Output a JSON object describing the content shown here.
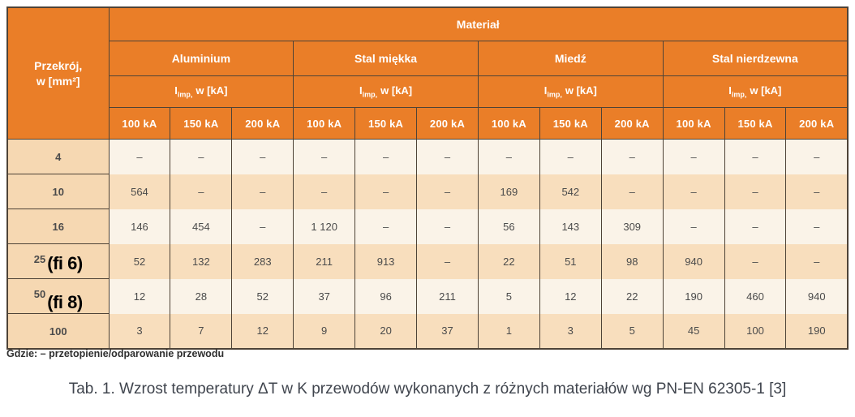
{
  "colors": {
    "header_orange": "#EA7E28",
    "row_cream": "#FAF3E8",
    "row_peach": "#F8DEBD",
    "section_peach": "#F6D8B2",
    "border_dark": "#4E4337",
    "header_text": "#FFFFFF",
    "cell_text": "#4B4B4B",
    "annotation_black": "#000000",
    "caption_gray": "#3F444D"
  },
  "table": {
    "corner": {
      "line1": "Przekrój,",
      "line2": "w [mm²]"
    },
    "material_header": "Materiał",
    "groups": [
      "Aluminium",
      "Stal miękka",
      "Miedź",
      "Stal nierdzewna"
    ],
    "imp": {
      "symbol": "I",
      "subscript": "imp,",
      "rest": "w [kA]"
    },
    "ka_columns": [
      "100 kA",
      "150 kA",
      "200 kA"
    ],
    "rows": [
      {
        "section": "4",
        "values": [
          "–",
          "–",
          "–",
          "–",
          "–",
          "–",
          "–",
          "–",
          "–",
          "–",
          "–",
          "–"
        ]
      },
      {
        "section": "10",
        "values": [
          "564",
          "–",
          "–",
          "–",
          "–",
          "–",
          "169",
          "542",
          "–",
          "–",
          "–",
          "–"
        ]
      },
      {
        "section": "16",
        "values": [
          "146",
          "454",
          "–",
          "1 120",
          "–",
          "–",
          "56",
          "143",
          "309",
          "–",
          "–",
          "–"
        ]
      },
      {
        "section": "25",
        "annotation": "(fi 6)",
        "values": [
          "52",
          "132",
          "283",
          "211",
          "913",
          "–",
          "22",
          "51",
          "98",
          "940",
          "–",
          "–"
        ]
      },
      {
        "section": "50",
        "annotation": "(fi 8)",
        "values": [
          "12",
          "28",
          "52",
          "37",
          "96",
          "211",
          "5",
          "12",
          "22",
          "190",
          "460",
          "940"
        ]
      },
      {
        "section": "100",
        "values": [
          "3",
          "7",
          "12",
          "9",
          "20",
          "37",
          "1",
          "3",
          "5",
          "45",
          "100",
          "190"
        ]
      }
    ]
  },
  "footnote": "Gdzie: – przetopienie/odparowanie przewodu",
  "caption": "Tab. 1. Wzrost temperatury ΔT w K przewodów wykonanych z różnych materiałów wg PN-EN 62305-1 [3]"
}
